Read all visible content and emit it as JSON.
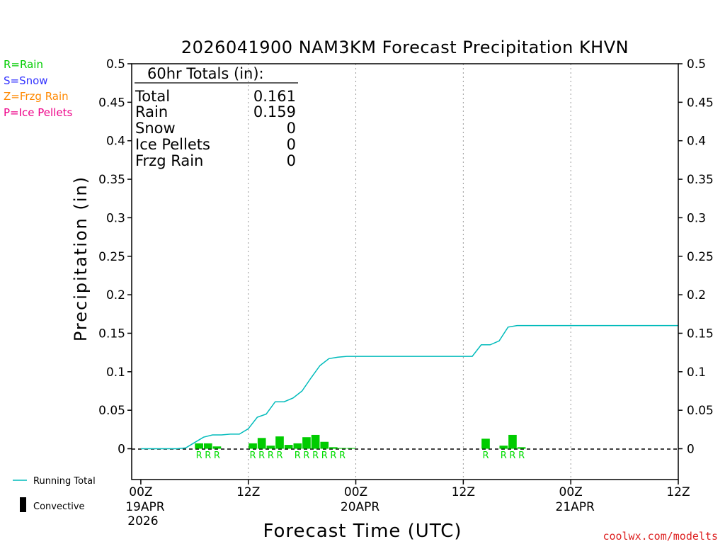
{
  "chart_data": {
    "type": "bar",
    "title": "2026041900 NAM3KM Forecast Precipitation KHVN",
    "xlabel": "Forecast Time (UTC)",
    "ylabel": "Precipitation (in)",
    "ylim": [
      -0.04,
      0.5
    ],
    "y_ticks": [
      0,
      0.05,
      0.1,
      0.15,
      0.2,
      0.25,
      0.3,
      0.35,
      0.4,
      0.45,
      0.5
    ],
    "y_tick_labels": [
      "0",
      "0.05",
      "0.1",
      "0.15",
      "0.2",
      "0.25",
      "0.3",
      "0.35",
      "0.4",
      "0.45",
      "0.5"
    ],
    "xlim_hours": [
      0,
      60
    ],
    "x_ticks": [
      {
        "hour": 0,
        "label": "00Z",
        "sub1": "19APR",
        "sub2": "2026"
      },
      {
        "hour": 12,
        "label": "12Z",
        "sub1": "",
        "sub2": ""
      },
      {
        "hour": 24,
        "label": "00Z",
        "sub1": "20APR",
        "sub2": ""
      },
      {
        "hour": 36,
        "label": "12Z",
        "sub1": "",
        "sub2": ""
      },
      {
        "hour": 48,
        "label": "00Z",
        "sub1": "21APR",
        "sub2": ""
      },
      {
        "hour": 60,
        "label": "12Z",
        "sub1": "",
        "sub2": ""
      }
    ],
    "grid_hours": [
      12,
      24,
      36,
      48
    ],
    "colors": {
      "rain": "#00cc00",
      "snow": "#3333ff",
      "frzg_rain": "#ff8800",
      "ice_pellets": "#ee0088",
      "running_total": "#00bbbb",
      "convective": "#000000"
    },
    "series": [
      {
        "name": "Rain (hourly)",
        "hours": [
          6,
          7,
          8,
          12,
          13,
          14,
          15,
          16,
          17,
          18,
          19,
          20,
          21,
          22,
          23,
          38,
          40,
          41,
          42
        ],
        "values": [
          0.007,
          0.007,
          0.003,
          0.007,
          0.014,
          0.004,
          0.016,
          0.005,
          0.007,
          0.015,
          0.018,
          0.009,
          0.002,
          0.001,
          0.001,
          0.013,
          0.004,
          0.018,
          0.002
        ]
      },
      {
        "name": "Running Total",
        "hours": [
          0,
          1,
          2,
          3,
          4,
          5,
          6,
          7,
          8,
          9,
          10,
          11,
          12,
          13,
          14,
          15,
          16,
          17,
          18,
          19,
          20,
          21,
          22,
          23,
          24,
          25,
          26,
          27,
          28,
          29,
          30,
          31,
          32,
          33,
          34,
          35,
          36,
          37,
          38,
          39,
          40,
          41,
          42,
          43,
          44,
          45,
          46,
          47,
          48,
          49,
          50,
          51,
          52,
          53,
          54,
          55,
          56,
          57,
          58,
          59,
          60
        ],
        "values": [
          0,
          0,
          0,
          0,
          0,
          0.001,
          0.008,
          0.015,
          0.018,
          0.018,
          0.019,
          0.019,
          0.026,
          0.041,
          0.045,
          0.061,
          0.061,
          0.066,
          0.075,
          0.092,
          0.108,
          0.117,
          0.119,
          0.12,
          0.12,
          0.12,
          0.12,
          0.12,
          0.12,
          0.12,
          0.12,
          0.12,
          0.12,
          0.12,
          0.12,
          0.12,
          0.12,
          0.12,
          0.135,
          0.135,
          0.14,
          0.158,
          0.16,
          0.16,
          0.16,
          0.16,
          0.16,
          0.16,
          0.16,
          0.16,
          0.16,
          0.16,
          0.16,
          0.16,
          0.16,
          0.16,
          0.16,
          0.16,
          0.16,
          0.16,
          0.16
        ]
      }
    ],
    "precip_type_marks": {
      "letter": "R",
      "hours": [
        6,
        7,
        8,
        12,
        13,
        14,
        15,
        17,
        18,
        19,
        20,
        21,
        22,
        38,
        40,
        41,
        42
      ]
    },
    "totals": {
      "header": "60hr Totals (in):",
      "rows": [
        {
          "label": "Total",
          "value": "0.161"
        },
        {
          "label": "Rain",
          "value": "0.159"
        },
        {
          "label": "Snow",
          "value": "0"
        },
        {
          "label": "Ice Pellets",
          "value": "0"
        },
        {
          "label": "Frzg Rain",
          "value": "0"
        }
      ]
    },
    "type_legend": [
      {
        "text": "R=Rain",
        "color": "#00cc00"
      },
      {
        "text": "S=Snow",
        "color": "#3333ff"
      },
      {
        "text": "Z=Frzg Rain",
        "color": "#ff8800"
      },
      {
        "text": "P=Ice Pellets",
        "color": "#ee0088"
      }
    ],
    "series_legend": [
      {
        "text": "Running Total",
        "kind": "line"
      },
      {
        "text": "Convective",
        "kind": "bar"
      }
    ],
    "credit": "coolwx.com/modelts"
  }
}
